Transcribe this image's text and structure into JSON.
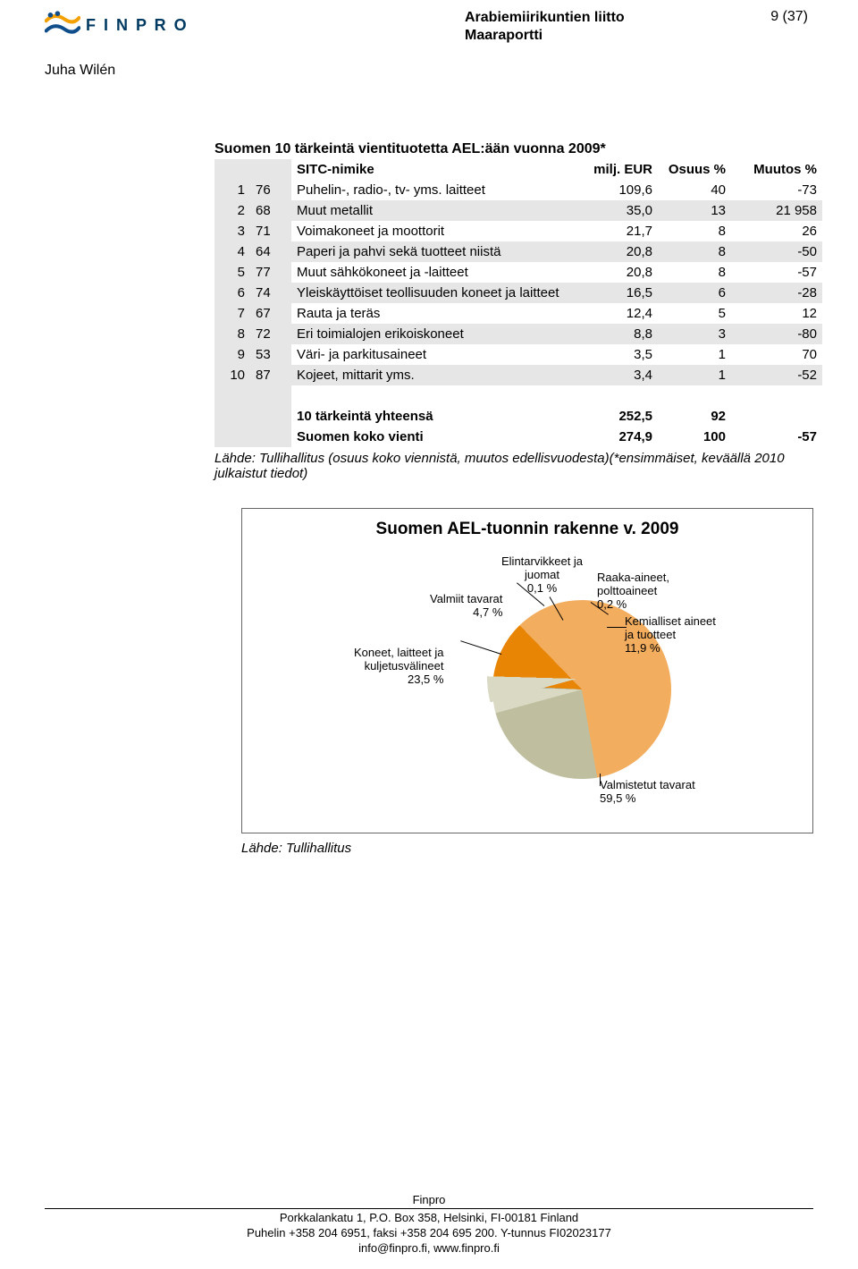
{
  "header": {
    "brand": "F I N P R O",
    "title_line1": "Arabiemiirikuntien liitto",
    "title_line2": "Maaraportti",
    "page_num": "9 (37)",
    "author": "Juha Wilén"
  },
  "table": {
    "title": "Suomen 10 tärkeintä vientituotetta AEL:ään vuonna 2009*",
    "col_sitc": "SITC-nimike",
    "col_val": "milj. EUR",
    "col_share": "Osuus %",
    "col_change": "Muutos %",
    "rows": [
      {
        "n": "1",
        "code": "76",
        "name": "Puhelin-, radio-, tv- yms. laitteet",
        "val": "109,6",
        "share": "40",
        "chg": "-73",
        "shade": false
      },
      {
        "n": "2",
        "code": "68",
        "name": "Muut metallit",
        "val": "35,0",
        "share": "13",
        "chg": "21 958",
        "shade": true
      },
      {
        "n": "3",
        "code": "71",
        "name": "Voimakoneet ja moottorit",
        "val": "21,7",
        "share": "8",
        "chg": "26",
        "shade": false
      },
      {
        "n": "4",
        "code": "64",
        "name": "Paperi ja pahvi sekä tuotteet niistä",
        "val": "20,8",
        "share": "8",
        "chg": "-50",
        "shade": true
      },
      {
        "n": "5",
        "code": "77",
        "name": "Muut sähkökoneet ja -laitteet",
        "val": "20,8",
        "share": "8",
        "chg": "-57",
        "shade": false
      },
      {
        "n": "6",
        "code": "74",
        "name": "Yleiskäyttöiset teollisuuden koneet ja laitteet",
        "val": "16,5",
        "share": "6",
        "chg": "-28",
        "shade": true
      },
      {
        "n": "7",
        "code": "67",
        "name": "Rauta ja teräs",
        "val": "12,4",
        "share": "5",
        "chg": "12",
        "shade": false
      },
      {
        "n": "8",
        "code": "72",
        "name": "Eri toimialojen erikoiskoneet",
        "val": "8,8",
        "share": "3",
        "chg": "-80",
        "shade": true
      },
      {
        "n": "9",
        "code": "53",
        "name": "Väri- ja parkitusaineet",
        "val": "3,5",
        "share": "1",
        "chg": "70",
        "shade": false
      },
      {
        "n": "10",
        "code": "87",
        "name": "Kojeet, mittarit yms.",
        "val": "3,4",
        "share": "1",
        "chg": "-52",
        "shade": true
      }
    ],
    "sum_label": "10 tärkeintä yhteensä",
    "sum_val": "252,5",
    "sum_share": "92",
    "total_label": "Suomen koko vienti",
    "total_val": "274,9",
    "total_share": "100",
    "total_chg": "-57",
    "source": "Lähde: Tullihallitus (osuus koko viennistä, muutos edellisvuodesta)(*ensimmäiset, keväällä 2010 julkaistut tiedot)"
  },
  "chart": {
    "title": "Suomen AEL-tuonnin rakenne v. 2009",
    "colors": {
      "elint": "#c6c6ad",
      "raaka": "#999980",
      "kem": "#e88504",
      "valmis": "#f2ad5e",
      "koneet": "#bfbf9f",
      "valmiit": "#d9d9c4"
    },
    "labels": {
      "elint": "Elintarvikkeet ja\njuomat\n0,1 %",
      "raaka": "Raaka-aineet,\npolttoaineet\n0,2 %",
      "kem": "Kemialliset aineet\nja tuotteet\n11,9 %",
      "valmis": "Valmistetut tavarat\n59,5 %",
      "koneet": "Koneet, laitteet ja\nkuljetusvälineet\n23,5 %",
      "valmiit": "Valmiit tavarat\n4,7 %"
    },
    "source": "Lähde: Tullihallitus"
  },
  "footer": {
    "l1": "Finpro",
    "l2": "Porkkalankatu 1, P.O. Box 358, Helsinki, FI-00181 Finland",
    "l3": "Puhelin +358 204 6951, faksi +358 204 695 200. Y-tunnus FI02023177",
    "l4": "info@finpro.fi, www.finpro.fi"
  }
}
